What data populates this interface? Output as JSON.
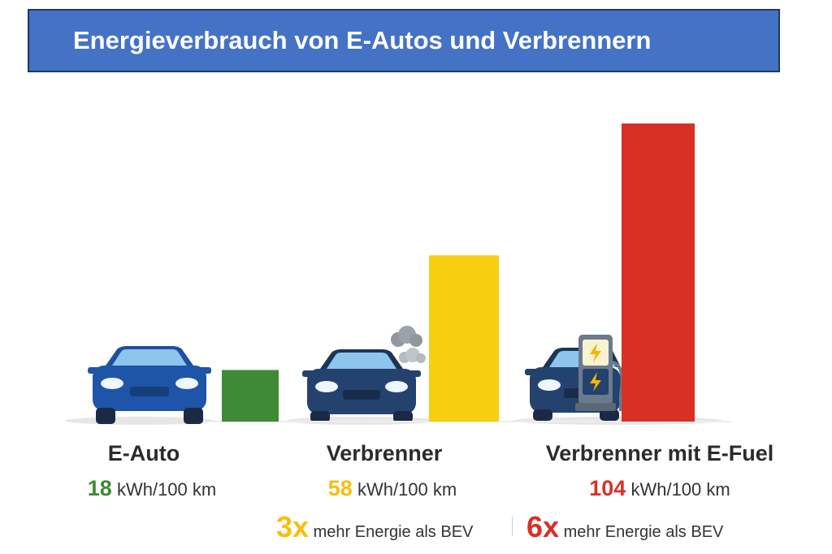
{
  "chart_data": {
    "type": "bar",
    "title": "Energieverbrauch von E-Autos und Verbrennern",
    "categories": [
      "E-Auto",
      "Verbrenner",
      "Verbrenner mit E-Fuel"
    ],
    "values": [
      18,
      58,
      104
    ],
    "unit": "kWh/100 km",
    "value_labels": [
      "18",
      "58",
      "104"
    ],
    "colors": [
      "#3f8a35",
      "#f6cf10",
      "#d93025"
    ],
    "multipliers": [
      {
        "value": "3x",
        "text": "mehr Energie als BEV",
        "color": "#f6bf10"
      },
      {
        "value": "6x",
        "text": "mehr Energie als BEV",
        "color": "#d93025"
      }
    ],
    "icons": [
      "blue-car-icon",
      "car-with-exhaust-icon",
      "car-with-charger-icon"
    ],
    "grid": false,
    "legend": "none"
  }
}
